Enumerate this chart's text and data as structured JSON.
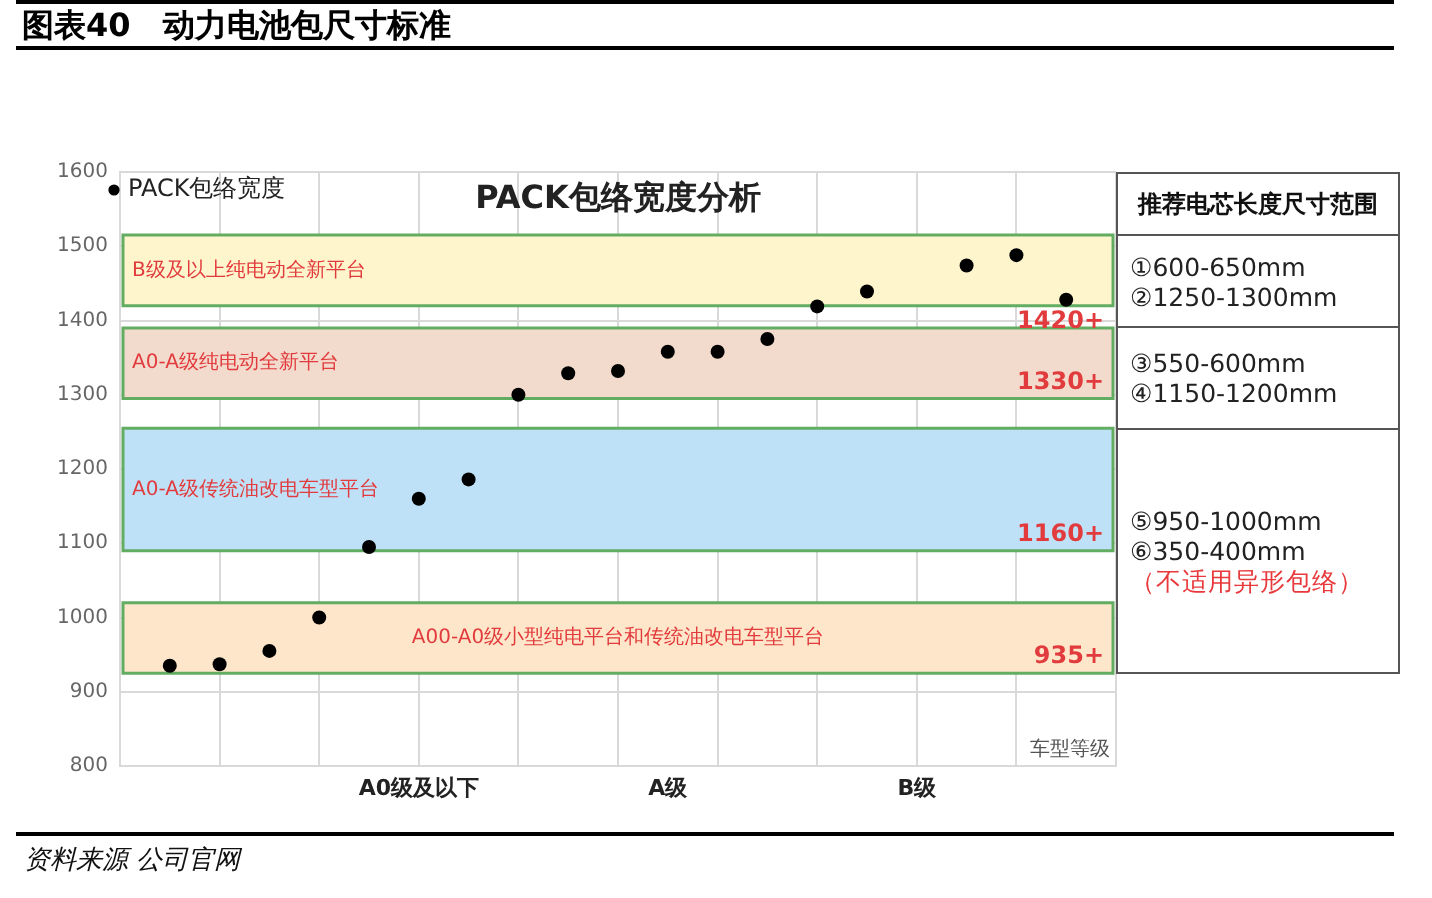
{
  "chart_data": [
    {
      "type": "scatter",
      "title": "图表40　动力电池包尺寸标准",
      "subtitle": "PACK包络宽度分析",
      "xlabel": "车型等级",
      "categories": [
        null,
        null,
        null,
        null,
        null,
        "A0级及以下",
        null,
        null,
        null,
        null,
        "A级",
        null,
        null,
        null,
        null,
        "B级",
        null,
        null,
        null
      ],
      "series": [
        {
          "name": "PACK包络宽度",
          "color": "#000000",
          "values": [
            935,
            937,
            955,
            1000,
            1095,
            1160,
            1186,
            1300,
            1329,
            1332,
            1358,
            1358,
            1375,
            1419,
            1439,
            null,
            1474,
            1488,
            1428
          ]
        }
      ],
      "ylim": [
        800,
        1600
      ],
      "yticks": [
        800,
        900,
        1000,
        1100,
        1200,
        1300,
        1400,
        1500,
        1600
      ],
      "bands": [
        {
          "axis": "y",
          "from": 1420,
          "to": 1515,
          "label": "B级及以上纯电动全新平台",
          "color": "#fef5cd"
        },
        {
          "axis": "y",
          "from": 1295,
          "to": 1390,
          "label": "A0-A级纯电动全新平台",
          "color": "#f2dbcd"
        },
        {
          "axis": "y",
          "from": 1090,
          "to": 1255,
          "label": "A0-A级传统油改电车型平台",
          "color": "#bfe1f8"
        },
        {
          "axis": "y",
          "from": 925,
          "to": 1020,
          "label": "A00-A0级小型纯电平台和传统油改电车型平台",
          "color": "#fde6c9"
        }
      ],
      "annotations": [
        {
          "text": "1420+",
          "y": 1420
        },
        {
          "text": "1330+",
          "y": 1295
        },
        {
          "text": "1160+",
          "y": 1090
        },
        {
          "text": "935+",
          "y": 925
        },
        "资料来源 公司官网"
      ],
      "grid": true,
      "legend": "top left",
      "marker": "circle"
    },
    {
      "type": "other",
      "title": "推荐电芯长度尺寸范围",
      "categories": [
        "①600-650mm\n②1250-1300mm",
        "③550-600mm\n④1150-1200mm",
        "⑤950-1000mm\n⑥350-400mm"
      ],
      "annotations": [
        "（不适用异形包络）"
      ],
      "color": "#e8393c"
    }
  ]
}
